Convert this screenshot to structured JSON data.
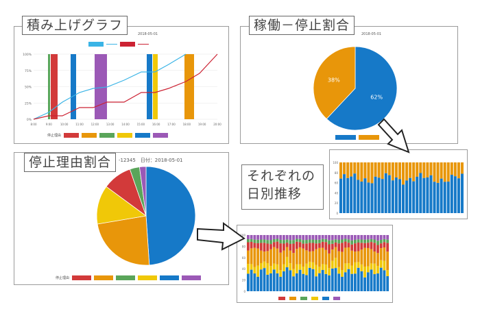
{
  "colors": {
    "red": "#d23a3a",
    "orange": "#e8960a",
    "green": "#5aa55a",
    "yellow": "#f0c808",
    "blue": "#1679c8",
    "purple": "#9b59b6",
    "line_cyan": "#3ab4e6",
    "line_red": "#cc2233"
  },
  "panels": {
    "stacked": {
      "title": "積み上げグラフ",
      "date_label": "2018-05-01",
      "legend_top": [
        "",
        ""
      ],
      "legend_bottom_label": "停止理由",
      "legend_items": [
        "",
        "",
        "",
        "",
        "",
        ""
      ],
      "y_ticks": [
        "100%",
        "75%",
        "50%",
        "25%",
        "0%"
      ],
      "x_ticks": [
        "8:00",
        "9:00",
        "10:00",
        "11:00",
        "12:00",
        "13:00",
        "14:00",
        "15:00",
        "16:00",
        "17:00",
        "18:00",
        "19:00",
        "20:00"
      ]
    },
    "ratio": {
      "title": "稼働－停止割合",
      "date_label": "2018-05-01",
      "legend_items": [
        "",
        ""
      ]
    },
    "reason": {
      "title": "停止理由割合",
      "header_text": "-12345　日付：2018-05-01",
      "legend_label": "停止理由",
      "legend_items": [
        "",
        "",
        "",
        "",
        "",
        ""
      ]
    },
    "daily_ratio": {
      "header_text": "",
      "y_ticks": [
        "100",
        "80",
        "60",
        "40",
        "20",
        "0"
      ]
    },
    "daily_reason": {
      "header_text": "",
      "y_ticks": [
        "100",
        "80",
        "60",
        "40",
        "20",
        "0"
      ],
      "legend_label": ""
    }
  },
  "caption": {
    "line1": "それぞれの",
    "line2": "日別推移"
  },
  "chart_data": [
    {
      "type": "pie",
      "categories": [
        "",
        ""
      ],
      "values": [
        62,
        38
      ],
      "data_labels": [
        "62%",
        "38%"
      ]
    },
    {
      "type": "pie",
      "categories": [
        "",
        "",
        "",
        "",
        "",
        ""
      ],
      "values": [
        46,
        22,
        12,
        9,
        3,
        2
      ]
    }
  ]
}
